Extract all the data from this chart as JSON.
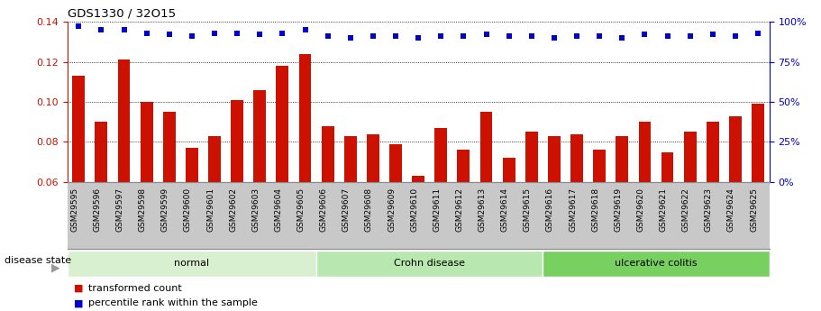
{
  "title": "GDS1330 / 32O15",
  "samples": [
    "GSM29595",
    "GSM29596",
    "GSM29597",
    "GSM29598",
    "GSM29599",
    "GSM29600",
    "GSM29601",
    "GSM29602",
    "GSM29603",
    "GSM29604",
    "GSM29605",
    "GSM29606",
    "GSM29607",
    "GSM29608",
    "GSM29609",
    "GSM29610",
    "GSM29611",
    "GSM29612",
    "GSM29613",
    "GSM29614",
    "GSM29615",
    "GSM29616",
    "GSM29617",
    "GSM29618",
    "GSM29619",
    "GSM29620",
    "GSM29621",
    "GSM29622",
    "GSM29623",
    "GSM29624",
    "GSM29625"
  ],
  "bar_values": [
    0.113,
    0.09,
    0.121,
    0.1,
    0.095,
    0.077,
    0.083,
    0.101,
    0.106,
    0.118,
    0.124,
    0.088,
    0.083,
    0.084,
    0.079,
    0.063,
    0.087,
    0.076,
    0.095,
    0.072,
    0.085,
    0.083,
    0.084,
    0.076,
    0.083,
    0.09,
    0.075,
    0.085,
    0.09,
    0.093,
    0.099
  ],
  "percentile_values": [
    97,
    95,
    95,
    93,
    92,
    91,
    93,
    93,
    92,
    93,
    95,
    91,
    90,
    91,
    91,
    90,
    91,
    91,
    92,
    91,
    91,
    90,
    91,
    91,
    90,
    92,
    91,
    91,
    92,
    91,
    93
  ],
  "ylim_left": [
    0.06,
    0.14
  ],
  "ylim_right": [
    0,
    100
  ],
  "yticks_left": [
    0.06,
    0.08,
    0.1,
    0.12,
    0.14
  ],
  "yticks_right": [
    0,
    25,
    50,
    75,
    100
  ],
  "bar_color": "#cc1100",
  "dot_color": "#0000cc",
  "groups": [
    {
      "label": "normal",
      "start": 0,
      "end": 11,
      "color": "#d8f0d0"
    },
    {
      "label": "Crohn disease",
      "start": 11,
      "end": 21,
      "color": "#b8e8b0"
    },
    {
      "label": "ulcerative colitis",
      "start": 21,
      "end": 31,
      "color": "#78d060"
    }
  ],
  "legend_bar_label": "transformed count",
  "legend_dot_label": "percentile rank within the sample",
  "disease_state_label": "disease state",
  "left_tick_color": "#cc1100",
  "right_tick_color": "#0000cc",
  "xtick_bg": "#c8c8c8",
  "bg_color": "#ffffff"
}
